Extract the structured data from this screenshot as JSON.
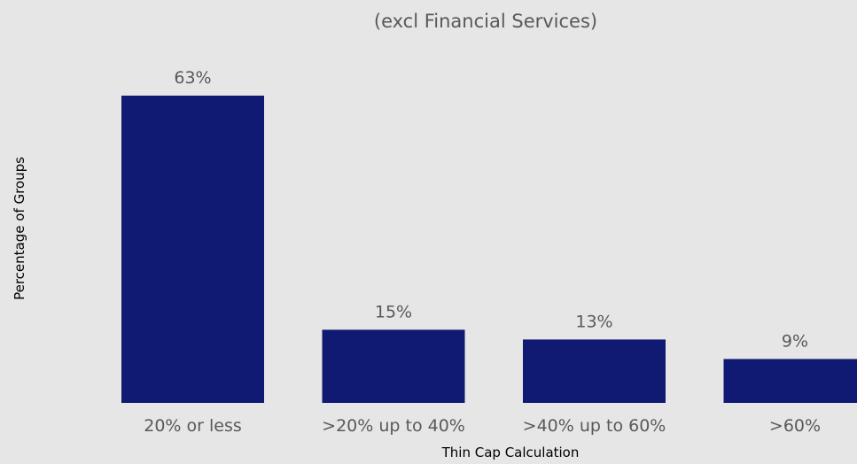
{
  "chart_data": {
    "type": "bar",
    "title": "",
    "subtitle": "(excl Financial Services)",
    "xlabel": "Thin Cap Calculation",
    "ylabel": "Percentage of Groups",
    "categories": [
      "20% or less",
      ">20% up to 40%",
      ">40% up to 60%",
      ">60%"
    ],
    "values": [
      63,
      15,
      13,
      9
    ],
    "value_labels": [
      "63%",
      "15%",
      "13%",
      "9%"
    ],
    "ylim": [
      0,
      63
    ],
    "grid": false,
    "legend": "none",
    "bar_color": "#111A72"
  }
}
